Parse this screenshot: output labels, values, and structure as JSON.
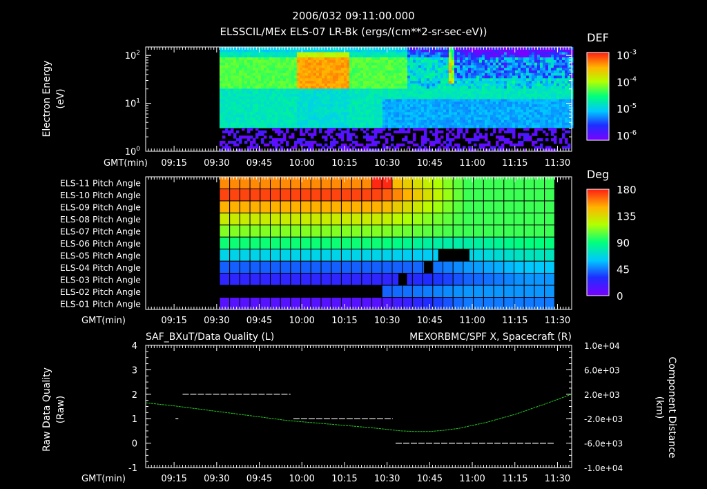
{
  "header": {
    "timestamp": "2006/032 09:11:00.000",
    "subtitle": "ELSSCIL/MEx ELS-07 LR-Bk  (ergs/(cm**2-sr-sec-eV))"
  },
  "colors": {
    "background": "#000000",
    "foreground": "#ffffff",
    "right_series": "#22cc22"
  },
  "panels": {
    "spectrogram": {
      "ylabel_line1": "Electron Energy",
      "ylabel_line2": "(eV)",
      "colorbar_title": "DEF",
      "time_axis_label": "GMT(min)"
    },
    "pitch": {
      "colorbar_title": "Deg",
      "time_axis_label": "GMT(min)"
    },
    "quality": {
      "title_left": "SAF_BXuT/Data Quality (L)",
      "title_right": "MEXORBMC/SPF X, Spacecraft (R)",
      "ylabel_left_line1": "Raw Data Quality",
      "ylabel_left_line2": "(Raw)",
      "ylabel_right_line1": "Component Distance",
      "ylabel_right_line2": "(km)",
      "time_axis_label": "GMT(min)"
    }
  },
  "chart_data": [
    {
      "type": "heatmap",
      "title": "ELSSCIL/MEx ELS-07 LR-Bk (ergs/(cm**2-sr-sec-eV))",
      "xlabel": "GMT(min)",
      "ylabel": "Electron Energy (eV)",
      "x_range_min": [
        5,
        95
      ],
      "x_ticks": [
        "09:15",
        "09:30",
        "09:45",
        "10:00",
        "10:15",
        "10:30",
        "10:45",
        "11:00",
        "11:15",
        "11:30"
      ],
      "x_tick_minutes": [
        15,
        30,
        45,
        60,
        75,
        90,
        105,
        120,
        135,
        150
      ],
      "x_axis_minutes": [
        5,
        155
      ],
      "data_start_min": 31,
      "y_scale": "log",
      "ylim": [
        1,
        150
      ],
      "y_ticks": [
        "10^0",
        "10^1",
        "10^2"
      ],
      "y_tick_values": [
        1,
        10,
        100
      ],
      "colorbar": {
        "label": "DEF",
        "scale": "log",
        "range": [
          7e-07,
          0.0013
        ],
        "ticks": [
          "10^-3",
          "10^-4",
          "10^-5",
          "10^-6"
        ],
        "tick_values": [
          0.001,
          0.0001,
          1e-05,
          1e-06
        ]
      }
    },
    {
      "type": "heatmap",
      "title": "Pitch Angle",
      "xlabel": "GMT(min)",
      "x_ticks": [
        "09:15",
        "09:30",
        "09:45",
        "10:00",
        "10:15",
        "10:30",
        "10:45",
        "11:00",
        "11:15",
        "11:30"
      ],
      "x_tick_minutes": [
        15,
        30,
        45,
        60,
        75,
        90,
        105,
        120,
        135,
        150
      ],
      "x_axis_minutes": [
        5,
        155
      ],
      "data_start_min": 31,
      "data_end_min": 149,
      "rows": [
        "ELS-11 Pitch Angle",
        "ELS-10 Pitch Angle",
        "ELS-09 Pitch Angle",
        "ELS-08 Pitch Angle",
        "ELS-07 Pitch Angle",
        "ELS-06 Pitch Angle",
        "ELS-05 Pitch Angle",
        "ELS-04 Pitch Angle",
        "ELS-03 Pitch Angle",
        "ELS-02 Pitch Angle",
        "ELS-01 Pitch Angle"
      ],
      "row_start_deg": [
        158,
        172,
        150,
        128,
        112,
        92,
        65,
        40,
        25,
        null,
        12
      ],
      "row_end_deg": [
        100,
        100,
        100,
        100,
        100,
        90,
        75,
        60,
        50,
        50,
        45
      ],
      "colorbar": {
        "label": "Deg",
        "range": [
          0,
          180
        ],
        "ticks": [
          "180",
          "135",
          "90",
          "45",
          "0"
        ],
        "tick_values": [
          180,
          135,
          90,
          45,
          0
        ]
      }
    },
    {
      "type": "line",
      "title": "SAF_BXuT/Data Quality (L) / MEXORBMC/SPF X, Spacecraft (R)",
      "xlabel": "GMT(min)",
      "x_ticks": [
        "09:15",
        "09:30",
        "09:45",
        "10:00",
        "10:15",
        "10:30",
        "10:45",
        "11:00",
        "11:15",
        "11:30"
      ],
      "x_tick_minutes": [
        15,
        30,
        45,
        60,
        75,
        90,
        105,
        120,
        135,
        150
      ],
      "x_axis_minutes": [
        5,
        155
      ],
      "ylabel_left": "Raw Data Quality (Raw)",
      "ylim_left": [
        -1,
        4
      ],
      "y_ticks_left": [
        "4",
        "3",
        "2",
        "1",
        "0",
        "-1"
      ],
      "ylabel_right": "Component Distance (km)",
      "ylim_right": [
        -10000,
        10000
      ],
      "y_ticks_right": [
        "1.0e+04",
        "6.0e+03",
        "2.0e+03",
        "-2.0e+03",
        "-6.0e+03",
        "-1.0e+04"
      ],
      "y_tick_values_right": [
        10000,
        6000,
        2000,
        -2000,
        -6000,
        -10000
      ],
      "series": [
        {
          "name": "Data Quality",
          "axis": "left",
          "color": "#ffffff",
          "segments": [
            {
              "x": [
                15.5,
                16.5
              ],
              "y": [
                1,
                1
              ]
            },
            {
              "x": [
                18,
                56
              ],
              "y": [
                2,
                2
              ]
            },
            {
              "x": [
                57,
                92
              ],
              "y": [
                1,
                1
              ]
            },
            {
              "x": [
                93,
                149
              ],
              "y": [
                0,
                0
              ]
            }
          ]
        },
        {
          "name": "MEXORBMC/SPF X, Spacecraft",
          "axis": "right",
          "color": "#22cc22",
          "x": [
            5,
            15,
            25,
            35,
            45,
            55,
            65,
            75,
            85,
            95,
            100,
            105,
            110,
            115,
            125,
            135,
            145,
            155
          ],
          "y": [
            600,
            100,
            -500,
            -1100,
            -1700,
            -2300,
            -2700,
            -3100,
            -3500,
            -4000,
            -4100,
            -4100,
            -3900,
            -3600,
            -2600,
            -1300,
            300,
            2000
          ]
        }
      ]
    }
  ]
}
